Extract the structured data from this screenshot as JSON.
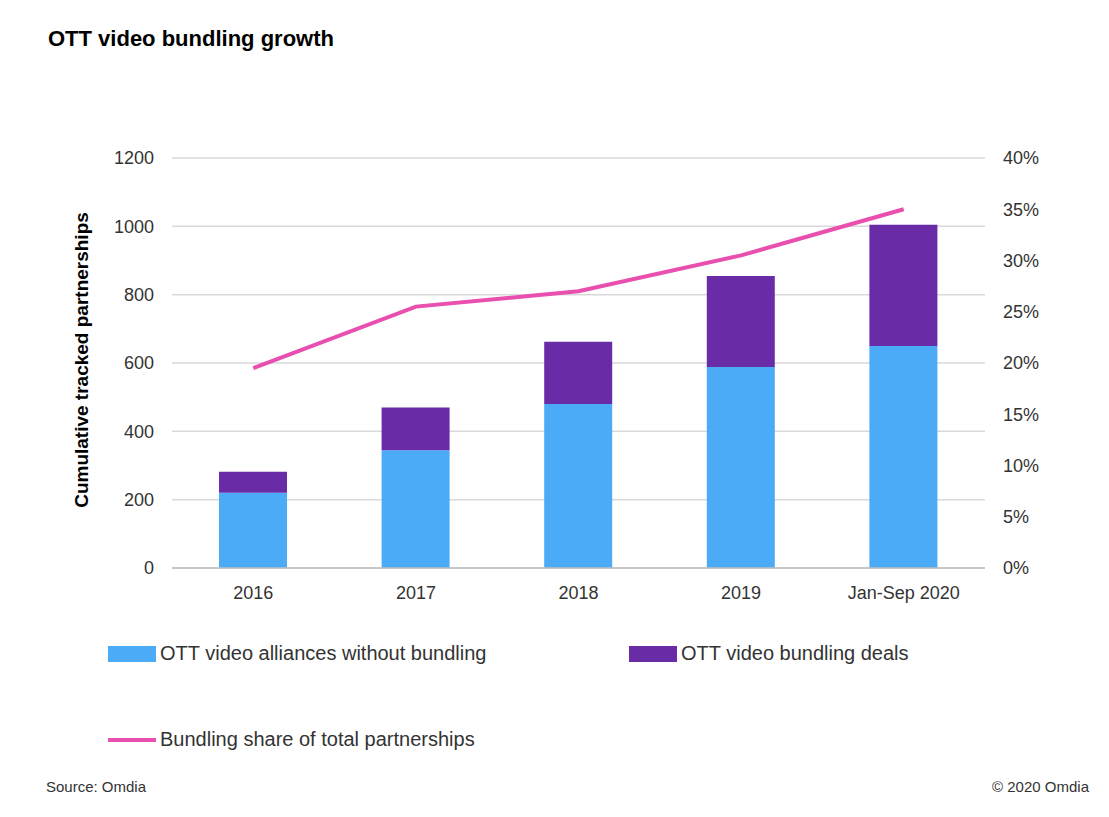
{
  "chart_data": {
    "type": "bar",
    "title": "OTT video bundling growth",
    "y_label": "Cumulative tracked partnerships",
    "categories": [
      "2016",
      "2017",
      "2018",
      "2019",
      "Jan-Sep 2020"
    ],
    "series": [
      {
        "name": "OTT video alliances without bundling",
        "color": "#4BABF6",
        "values": [
          220,
          345,
          480,
          588,
          650
        ]
      },
      {
        "name": "OTT video bundling deals",
        "color": "#6A2CA6",
        "values": [
          62,
          125,
          182,
          267,
          355
        ]
      },
      {
        "name": "Bundling share of total partnerships",
        "type": "line",
        "axis": "y2",
        "color": "#E84FAE",
        "values": [
          19.5,
          25.5,
          27,
          30.5,
          35
        ]
      }
    ],
    "stacked": true,
    "ylim": [
      0,
      1200
    ],
    "yticks": [
      0,
      200,
      400,
      600,
      800,
      1000,
      1200
    ],
    "y2lim": [
      0,
      40
    ],
    "y2ticks": [
      {
        "value": 0,
        "label": "0%"
      },
      {
        "value": 5,
        "label": "5%"
      },
      {
        "value": 10,
        "label": "10%"
      },
      {
        "value": 15,
        "label": "15%"
      },
      {
        "value": 20,
        "label": "20%"
      },
      {
        "value": 25,
        "label": "25%"
      },
      {
        "value": 30,
        "label": "30%"
      },
      {
        "value": 35,
        "label": "35%"
      },
      {
        "value": 40,
        "label": "40%"
      }
    ],
    "grid": true,
    "legend": "bottom",
    "source": "Source: Omdia",
    "copyright": "© 2020 Omdia"
  }
}
